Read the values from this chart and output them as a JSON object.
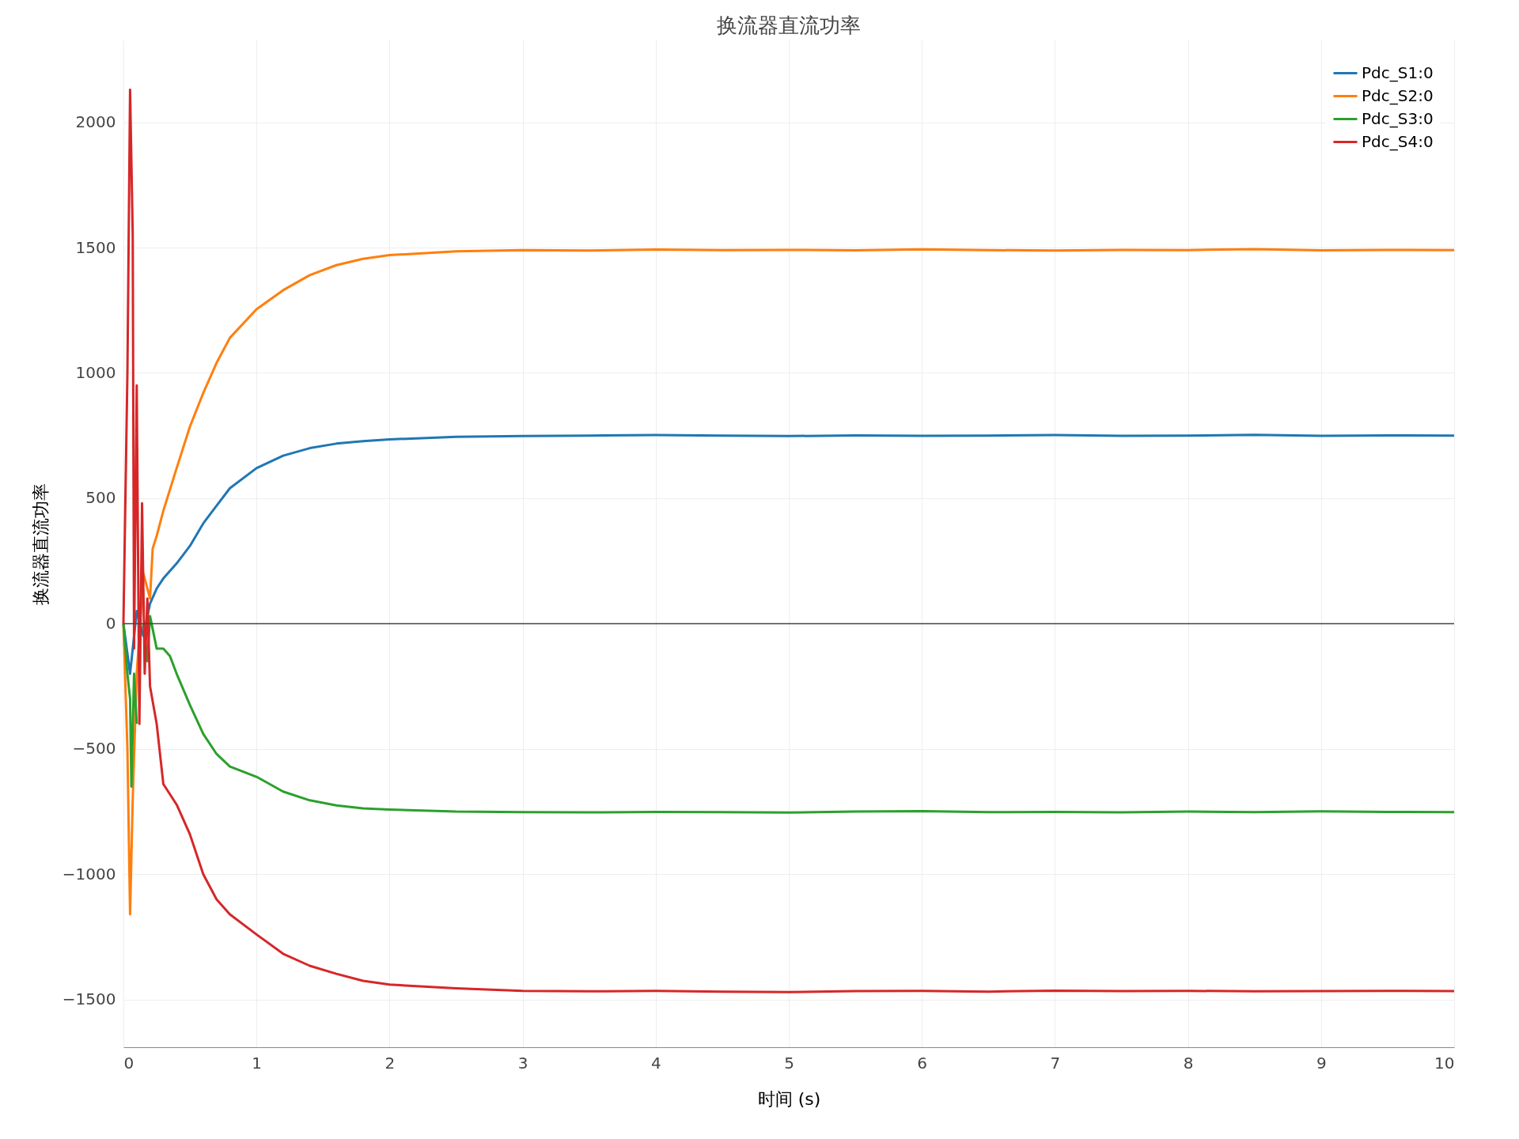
{
  "chart_data": {
    "type": "line",
    "title": "换流器直流功率",
    "xlabel": "时间 (s)",
    "ylabel": "换流器直流功率",
    "xlim": [
      0,
      10
    ],
    "ylim": [
      -1690,
      2330
    ],
    "xticks": [
      0,
      1,
      2,
      3,
      4,
      5,
      6,
      7,
      8,
      9,
      10
    ],
    "yticks": [
      -1500,
      -1000,
      -500,
      0,
      500,
      1000,
      1500,
      2000
    ],
    "grid": true,
    "legend": "top right",
    "line_style": "solid",
    "marker": "none",
    "ref_lines": [
      {
        "axis": "y",
        "value": 0,
        "color": "#444444"
      }
    ],
    "series": [
      {
        "name": "Pdc_S1:0",
        "color": "#1f77b4",
        "x": [
          0,
          0.05,
          0.1,
          0.15,
          0.2,
          0.25,
          0.3,
          0.4,
          0.5,
          0.6,
          0.7,
          0.8,
          1.0,
          1.2,
          1.4,
          1.6,
          1.8,
          2.0,
          2.5,
          3,
          3.5,
          4,
          4.5,
          5,
          5.5,
          6,
          6.5,
          7,
          7.5,
          8,
          8.5,
          9,
          9.5,
          10
        ],
        "values": [
          0,
          -200,
          50,
          -50,
          80,
          140,
          180,
          240,
          310,
          400,
          470,
          540,
          620,
          670,
          700,
          718,
          728,
          735,
          745,
          748,
          750,
          752,
          750,
          748,
          751,
          749,
          750,
          752,
          749,
          750,
          753,
          749,
          751,
          750
        ]
      },
      {
        "name": "Pdc_S2:0",
        "color": "#ff7f0e",
        "x": [
          0,
          0.03,
          0.05,
          0.07,
          0.1,
          0.15,
          0.2,
          0.22,
          0.25,
          0.3,
          0.4,
          0.5,
          0.6,
          0.7,
          0.8,
          1.0,
          1.2,
          1.4,
          1.6,
          1.8,
          2.0,
          2.5,
          3,
          3.5,
          4,
          4.5,
          5,
          5.5,
          6,
          6.5,
          7,
          7.5,
          8,
          8.5,
          9,
          9.5,
          10
        ],
        "values": [
          0,
          -500,
          -1160,
          -700,
          -200,
          200,
          100,
          300,
          350,
          450,
          620,
          786,
          920,
          1040,
          1140,
          1254,
          1330,
          1390,
          1430,
          1455,
          1470,
          1485,
          1490,
          1488,
          1492,
          1490,
          1491,
          1489,
          1493,
          1490,
          1488,
          1491,
          1490,
          1494,
          1489,
          1491,
          1490
        ]
      },
      {
        "name": "Pdc_S3:0",
        "color": "#2ca02c",
        "x": [
          0,
          0.03,
          0.05,
          0.06,
          0.08,
          0.1,
          0.12,
          0.15,
          0.18,
          0.2,
          0.25,
          0.3,
          0.35,
          0.4,
          0.5,
          0.6,
          0.7,
          0.8,
          1.0,
          1.2,
          1.4,
          1.6,
          1.8,
          2.0,
          2.5,
          3,
          3.5,
          4,
          4.5,
          5,
          5.5,
          6,
          6.5,
          7,
          7.5,
          8,
          8.5,
          9,
          9.5,
          10
        ],
        "values": [
          0,
          -200,
          -300,
          -650,
          -200,
          -400,
          null,
          0,
          -150,
          30,
          -100,
          -100,
          -130,
          -200,
          -325,
          -440,
          -520,
          -570,
          -611,
          -670,
          -705,
          -725,
          -737,
          -742,
          -750,
          -752,
          -753,
          -751,
          -752,
          -754,
          -750,
          -748,
          -752,
          -751,
          -753,
          -750,
          -752,
          -749,
          -751,
          -752
        ]
      },
      {
        "name": "Pdc_S4:0",
        "color": "#d62728",
        "x": [
          0,
          0.03,
          0.05,
          0.07,
          0.08,
          0.1,
          0.12,
          0.14,
          0.16,
          0.18,
          0.2,
          0.25,
          0.3,
          0.4,
          0.5,
          0.6,
          0.7,
          0.8,
          1.0,
          1.2,
          1.4,
          1.6,
          1.8,
          2.0,
          2.5,
          3,
          3.5,
          4,
          4.5,
          5,
          5.5,
          6,
          6.5,
          7,
          7.5,
          8,
          8.5,
          9,
          9.5,
          10
        ],
        "values": [
          0,
          1000,
          2130,
          1550,
          -100,
          950,
          -400,
          480,
          -200,
          100,
          -250,
          -400,
          -640,
          -722,
          -841,
          -1000,
          -1100,
          -1160,
          -1240,
          -1317,
          -1365,
          -1397,
          -1425,
          -1440,
          -1455,
          -1465,
          -1467,
          -1465,
          -1468,
          -1470,
          -1466,
          -1465,
          -1468,
          -1464,
          -1466,
          -1465,
          -1467,
          -1466,
          -1465,
          -1466
        ]
      }
    ]
  }
}
